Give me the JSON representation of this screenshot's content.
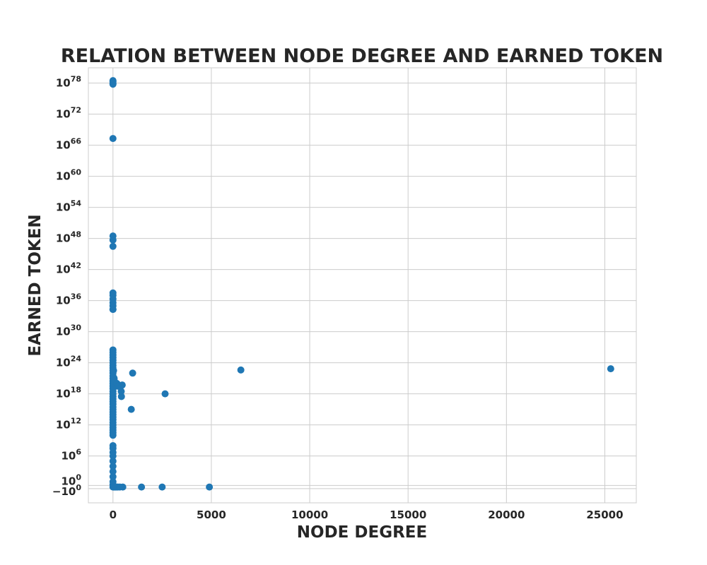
{
  "chart_data": {
    "type": "scatter",
    "title": "RELATION BETWEEN NODE DEGREE AND EARNED TOKEN",
    "xlabel": "NODE DEGREE",
    "ylabel": "EARNED TOKEN",
    "xlim": [
      -1250,
      26600
    ],
    "x_ticks": [
      0,
      5000,
      10000,
      15000,
      20000,
      25000
    ],
    "y_scale": "symlog",
    "y_ticks": [
      {
        "base": "−10",
        "exp": "0",
        "value": -1
      },
      {
        "base": "10",
        "exp": "0",
        "value": 1
      },
      {
        "base": "10",
        "exp": "6",
        "value": 1000000.0
      },
      {
        "base": "10",
        "exp": "12",
        "value": 1000000000000.0
      },
      {
        "base": "10",
        "exp": "18",
        "value": 1e+18
      },
      {
        "base": "10",
        "exp": "24",
        "value": 1e+24
      },
      {
        "base": "10",
        "exp": "30",
        "value": 1e+30
      },
      {
        "base": "10",
        "exp": "36",
        "value": 1e+36
      },
      {
        "base": "10",
        "exp": "42",
        "value": 1e+42
      },
      {
        "base": "10",
        "exp": "48",
        "value": 1e+48
      },
      {
        "base": "10",
        "exp": "54",
        "value": 1e+54
      },
      {
        "base": "10",
        "exp": "60",
        "value": 1e+60
      },
      {
        "base": "10",
        "exp": "66",
        "value": 1e+66
      },
      {
        "base": "10",
        "exp": "72",
        "value": 1e+72
      },
      {
        "base": "10",
        "exp": "78",
        "value": 1e+78
      }
    ],
    "grid": true,
    "colors": {
      "points": "#1f77b4",
      "grid": "#cccccc",
      "text": "#262626"
    },
    "points": [
      {
        "x": 0,
        "y": 3e+78
      },
      {
        "x": 0,
        "y": 2e+78
      },
      {
        "x": 0,
        "y": 1e+78
      },
      {
        "x": 0,
        "y": 6e+77
      },
      {
        "x": 0,
        "y": 2e+67
      },
      {
        "x": 0,
        "y": 3e+48
      },
      {
        "x": 0,
        "y": 5e+47
      },
      {
        "x": 0,
        "y": 3e+46
      },
      {
        "x": 0,
        "y": 3e+37
      },
      {
        "x": 0,
        "y": 1e+37
      },
      {
        "x": 0,
        "y": 2e+36
      },
      {
        "x": 0,
        "y": 4e+35
      },
      {
        "x": 0,
        "y": 1e+35
      },
      {
        "x": 0,
        "y": 2e+34
      },
      {
        "x": 0,
        "y": 2e+34
      },
      {
        "x": 0,
        "y": 3e+26
      },
      {
        "x": 0,
        "y": 1e+26
      },
      {
        "x": 0,
        "y": 3e+25
      },
      {
        "x": 0,
        "y": 1e+25
      },
      {
        "x": 0,
        "y": 3e+24
      },
      {
        "x": 0,
        "y": 1e+24
      },
      {
        "x": 0,
        "y": 3e+23
      },
      {
        "x": 0,
        "y": 1e+23
      },
      {
        "x": 0,
        "y": 3e+22
      },
      {
        "x": 0,
        "y": 1e+22
      },
      {
        "x": 0,
        "y": 3e+21
      },
      {
        "x": 0,
        "y": 1e+21
      },
      {
        "x": 0,
        "y": 3e+20
      },
      {
        "x": 0,
        "y": 1e+20
      },
      {
        "x": 0,
        "y": 3e+19
      },
      {
        "x": 0,
        "y": 1e+19
      },
      {
        "x": 0,
        "y": 3e+18
      },
      {
        "x": 0,
        "y": 1e+18
      },
      {
        "x": 0,
        "y": 3e+17
      },
      {
        "x": 0,
        "y": 1e+17
      },
      {
        "x": 0,
        "y": 3e+16
      },
      {
        "x": 0,
        "y": 1e+16
      },
      {
        "x": 0,
        "y": 3000000000000000.0
      },
      {
        "x": 0,
        "y": 1000000000000000.0
      },
      {
        "x": 0,
        "y": 300000000000000.0
      },
      {
        "x": 0,
        "y": 100000000000000.0
      },
      {
        "x": 0,
        "y": 30000000000000.0
      },
      {
        "x": 0,
        "y": 10000000000000.0
      },
      {
        "x": 0,
        "y": 3000000000000.0
      },
      {
        "x": 0,
        "y": 1000000000000.0
      },
      {
        "x": 0,
        "y": 300000000000.0
      },
      {
        "x": 0,
        "y": 100000000000.0
      },
      {
        "x": 0,
        "y": 30000000000.0
      },
      {
        "x": 0,
        "y": 10000000000.0
      },
      {
        "x": 0,
        "y": 100000000.0
      },
      {
        "x": 0,
        "y": 30000000.0
      },
      {
        "x": 0,
        "y": 5000000.0
      },
      {
        "x": 0,
        "y": 1000000.0
      },
      {
        "x": 0,
        "y": 100000.0
      },
      {
        "x": 0,
        "y": 10000.0
      },
      {
        "x": 0,
        "y": 1000.0
      },
      {
        "x": 0,
        "y": 100.0
      },
      {
        "x": 0,
        "y": 10
      },
      {
        "x": 0,
        "y": 2
      },
      {
        "x": 0,
        "y": 0
      },
      {
        "x": 40,
        "y": 0
      },
      {
        "x": 80,
        "y": 0
      },
      {
        "x": 120,
        "y": 0
      },
      {
        "x": 180,
        "y": 0
      },
      {
        "x": 250,
        "y": 0
      },
      {
        "x": 350,
        "y": 0
      },
      {
        "x": 500,
        "y": 0
      },
      {
        "x": 30,
        "y": 3e+22
      },
      {
        "x": 60,
        "y": 1e+21
      },
      {
        "x": 100,
        "y": 2e+20
      },
      {
        "x": 150,
        "y": 5e+19
      },
      {
        "x": 200,
        "y": 1e+20
      },
      {
        "x": 250,
        "y": 3e+19
      },
      {
        "x": 420,
        "y": 3e+18
      },
      {
        "x": 470,
        "y": 5e+19
      },
      {
        "x": 430,
        "y": 3e+17
      },
      {
        "x": 1000,
        "y": 1e+22
      },
      {
        "x": 930,
        "y": 1000000000000000.0
      },
      {
        "x": 2650,
        "y": 1e+18
      },
      {
        "x": 1450,
        "y": 0
      },
      {
        "x": 2500,
        "y": 0
      },
      {
        "x": 4900,
        "y": 0
      },
      {
        "x": 6500,
        "y": 4e+22
      },
      {
        "x": 25300,
        "y": 7e+22
      }
    ]
  }
}
